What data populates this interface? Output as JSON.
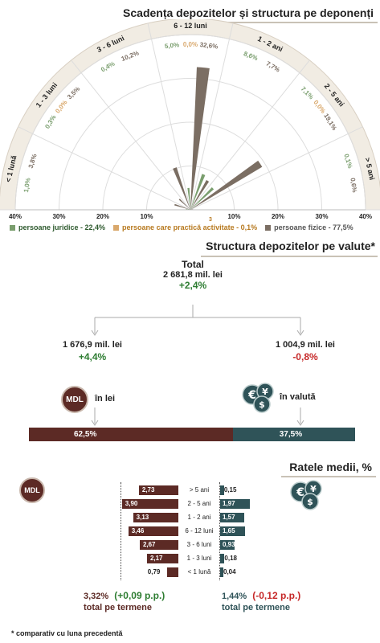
{
  "chart_data": [
    {
      "type": "polar-bar",
      "title": "Scadența depozitelor și structura pe deponenți",
      "categories": [
        "< 1 lună",
        "1 - 3 luni",
        "3 - 6 luni",
        "6 - 12 luni",
        "1 - 2 ani",
        "2 - 5 ani",
        "> 5 ani"
      ],
      "series": [
        {
          "name": "persoane juridice - 22,4%",
          "color": "#7a9e6e",
          "values": [
            1.0,
            0.3,
            0.4,
            5.0,
            8.6,
            7.1,
            0.1
          ]
        },
        {
          "name": "persoane care practică activitate - 0,1%",
          "color": "#d9a86c",
          "values": [
            0.0,
            0.0,
            0.0,
            0.0,
            0.0,
            0.0,
            0.0
          ]
        },
        {
          "name": "persoane fizice - 77,5%",
          "color": "#7b6e63",
          "values": [
            3.8,
            3.5,
            10.2,
            32.6,
            7.7,
            19.1,
            0.6
          ]
        }
      ],
      "labels": [
        {
          "cat": "< 1 lună",
          "texts": [
            "1,0%",
            "3,8%"
          ]
        },
        {
          "cat": "1 - 3 luni",
          "texts": [
            "0,3%",
            "0,0%",
            "3,5%"
          ]
        },
        {
          "cat": "3 - 6 luni",
          "texts": [
            "0,4%",
            "10,2%"
          ]
        },
        {
          "cat": "6 - 12 luni",
          "texts": [
            "5,0%",
            "0,0%",
            "32,6%"
          ]
        },
        {
          "cat": "1 - 2 ani",
          "texts": [
            "8,6%",
            "7,7%"
          ]
        },
        {
          "cat": "2 - 5 ani",
          "texts": [
            "7,1%",
            "0,0%",
            "19,1%"
          ]
        },
        {
          "cat": "> 5 ani",
          "texts": [
            "0,1%",
            "0,6%"
          ]
        }
      ],
      "axis_ticks": [
        "40%",
        "30%",
        "20%",
        "10%",
        "10%",
        "20%",
        "30%",
        "40%"
      ],
      "rmax": 40
    },
    {
      "type": "bar",
      "title": "Structura depozitelor pe valute*",
      "total_label": "Total",
      "total_value": "2 681,8 mil. lei",
      "total_change": "+2,4%",
      "lei_value": "1 676,9 mil. lei",
      "lei_change": "+4,4%",
      "lei_label": "în lei",
      "val_value": "1 004,9 mil. lei",
      "val_change": "-0,8%",
      "val_label": "în valută",
      "share_lei": 62.5,
      "share_val": 37.5,
      "share_lei_text": "62,5%",
      "share_val_text": "37,5%",
      "colors": {
        "lei": "#5c2a25",
        "val": "#2f5358"
      }
    },
    {
      "type": "bar",
      "title": "Ratele medii, %",
      "categories": [
        "> 5 ani",
        "2 - 5 ani",
        "1 - 2 ani",
        "6 - 12 luni",
        "3 - 6 luni",
        "1 - 3 luni",
        "< 1 lună"
      ],
      "lei_values": [
        2.73,
        3.9,
        3.13,
        3.46,
        2.67,
        2.17,
        0.79
      ],
      "lei_texts": [
        "2,73",
        "3,90",
        "3,13",
        "3,46",
        "2,67",
        "2,17",
        "0,79"
      ],
      "val_values": [
        0.15,
        1.97,
        1.57,
        1.65,
        0.93,
        0.18,
        0.04
      ],
      "val_texts": [
        "0,15",
        "1,97",
        "1,57",
        "1,65",
        "0,93",
        "0,18",
        "0,04"
      ],
      "lei_total": "3,32%",
      "lei_total_change": "(+0,09 p.p.)",
      "val_total": "1,44%",
      "val_total_change": "(-0,12 p.p.)",
      "total_caption": "total pe termene"
    }
  ],
  "badge_mdl": "MDL",
  "footnote": "* comparativ cu luna precedentă",
  "legend_sup": "3"
}
